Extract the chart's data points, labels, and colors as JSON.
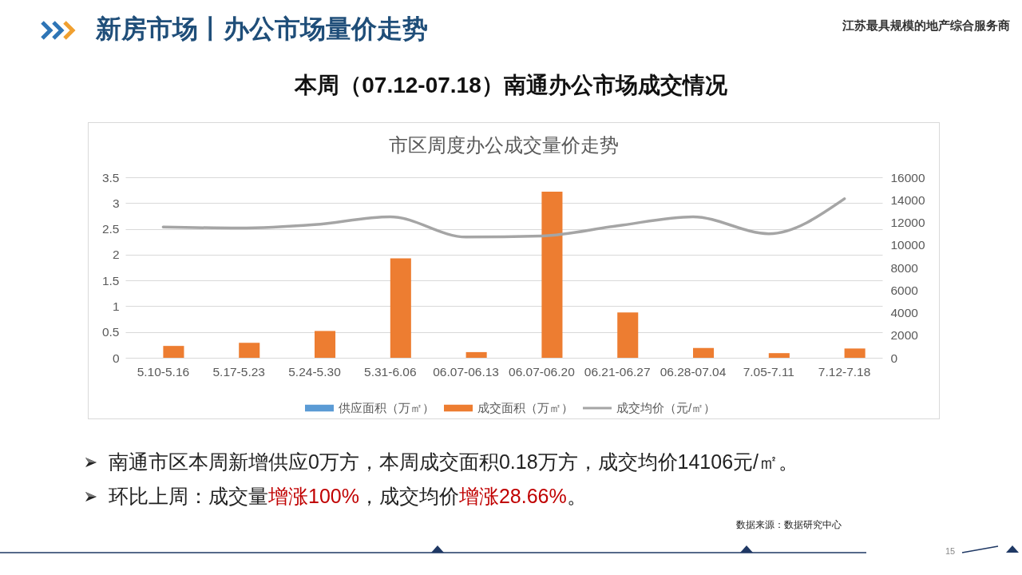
{
  "chart_data": {
    "type": "bar",
    "title": "市区周度办公成交量价走势",
    "categories": [
      "5.10-5.16",
      "5.17-5.23",
      "5.24-5.30",
      "5.31-6.06",
      "06.07-06.13",
      "06.07-06.20",
      "06.21-06.27",
      "06.28-07.04",
      "7.05-7.11",
      "7.12-7.18"
    ],
    "series": [
      {
        "name": "供应面积（万㎡）",
        "color": "#5b9bd5",
        "values": [
          0,
          0,
          0,
          0,
          0,
          0,
          0,
          0,
          0,
          0
        ]
      },
      {
        "name": "成交面积（万㎡）",
        "color": "#ed7d31",
        "values": [
          0.23,
          0.29,
          0.52,
          1.93,
          0.11,
          3.22,
          0.88,
          0.19,
          0.09,
          0.18
        ]
      },
      {
        "name": "成交均价（元/㎡）",
        "type": "line",
        "axis": "y2",
        "color": "#a5a5a5",
        "values": [
          11600,
          11500,
          11800,
          12500,
          10700,
          10800,
          11700,
          12500,
          11000,
          14100
        ]
      }
    ],
    "ylim": [
      0,
      3.5
    ],
    "yticks": [
      0,
      0.5,
      1,
      1.5,
      2,
      2.5,
      3,
      3.5
    ],
    "y2lim": [
      0,
      16000
    ],
    "y2ticks": [
      0,
      2000,
      4000,
      6000,
      8000,
      10000,
      12000,
      14000,
      16000
    ],
    "grid": "y",
    "legend": "bottom",
    "annotations": [
      "新房市场丨办公市场量价走势",
      "江苏最具规模的地产综合服务商",
      "本周（07.12-07.18）南通办公市场成交情况",
      "南通市区本周新增供应0万方，本周成交面积0.18万方，成交均价14106元/㎡。",
      "环比上周：成交量",
      "增涨100%",
      "，成交均价",
      "增涨28.66%",
      "。",
      "数据来源：数据研究中心",
      "15"
    ]
  }
}
